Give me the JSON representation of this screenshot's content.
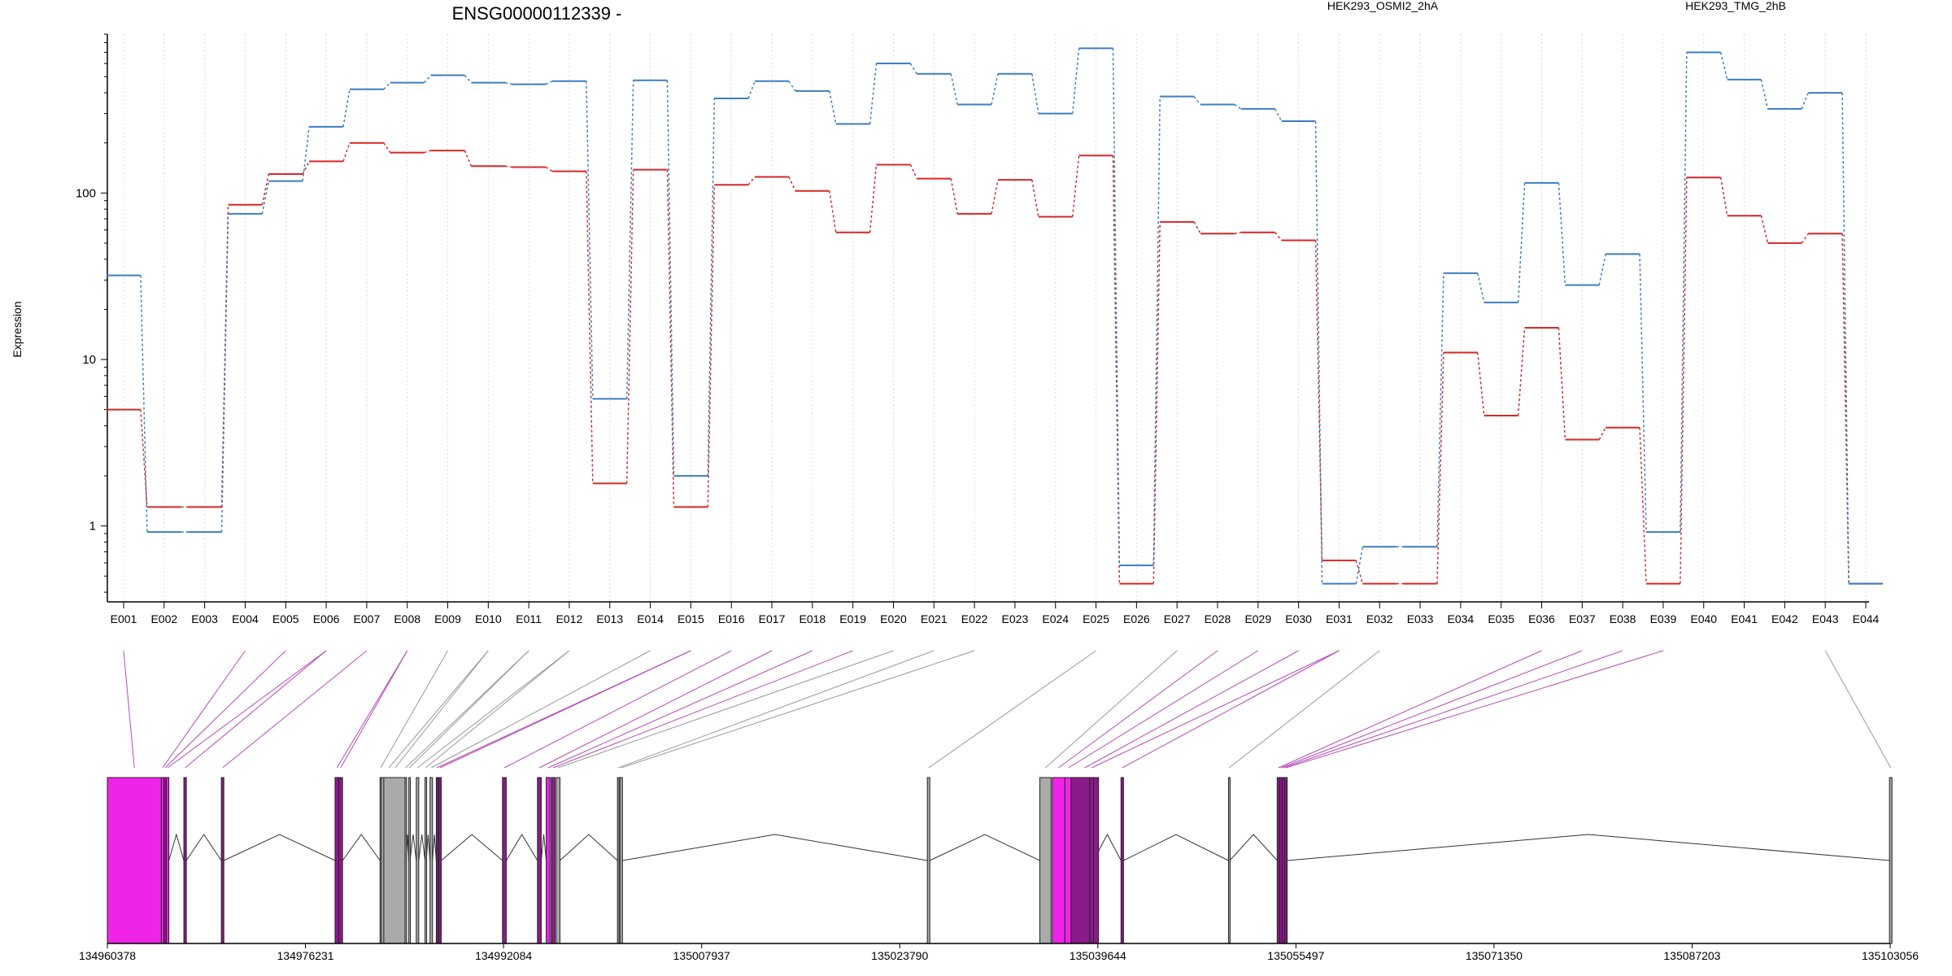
{
  "chart_data": {
    "type": "line",
    "title": "ENSG00000112339 -",
    "xlabel": "",
    "ylabel": "Expression",
    "yscale": "log",
    "ylim": [
      0.35,
      900
    ],
    "yticks": [
      1,
      10,
      100
    ],
    "ytick_labels": [
      "1",
      "10",
      "100"
    ],
    "grid": "vertical dotted guides at each exon",
    "legend_position": "top",
    "exons": [
      "E001",
      "E002",
      "E003",
      "E004",
      "E005",
      "E006",
      "E007",
      "E008",
      "E009",
      "E010",
      "E011",
      "E012",
      "E013",
      "E014",
      "E015",
      "E016",
      "E017",
      "E018",
      "E019",
      "E020",
      "E021",
      "E022",
      "E023",
      "E024",
      "E025",
      "E026",
      "E027",
      "E028",
      "E029",
      "E030",
      "E031",
      "E032",
      "E033",
      "E034",
      "E035",
      "E036",
      "E037",
      "E038",
      "E039",
      "E040",
      "E041",
      "E042",
      "E043",
      "E044"
    ],
    "series": [
      {
        "name": "HEK293_OSMI2_2hA",
        "color": "#d62728",
        "values": [
          5,
          1.3,
          1.3,
          85,
          130,
          155,
          200,
          175,
          180,
          145,
          143,
          135,
          1.8,
          138,
          1.3,
          112,
          125,
          103,
          58,
          148,
          122,
          75,
          120,
          72,
          168,
          0.45,
          67,
          57,
          58,
          52,
          0.62,
          0.45,
          0.45,
          11,
          4.6,
          15.5,
          3.3,
          3.9,
          0.45,
          124,
          73,
          50,
          57,
          0.45
        ]
      },
      {
        "name": "HEK293_TMG_2hB",
        "color": "#3b7dc4",
        "values": [
          32,
          0.92,
          0.92,
          75,
          118,
          250,
          420,
          460,
          510,
          460,
          450,
          470,
          5.8,
          475,
          2.0,
          370,
          470,
          410,
          260,
          600,
          520,
          340,
          520,
          300,
          740,
          0.58,
          380,
          340,
          320,
          270,
          0.45,
          0.75,
          0.75,
          33,
          22,
          115,
          28,
          43,
          0.92,
          700,
          480,
          320,
          400,
          0.45
        ]
      }
    ],
    "gene_model": {
      "coordinate_ticks": [
        "134960378",
        "134976231",
        "134992084",
        "135007937",
        "135023790",
        "135039644",
        "135055497",
        "135071350",
        "135087203",
        "135103056"
      ],
      "genome_range": [
        134960378,
        135103056
      ],
      "colors": {
        "expressed": "#f024e8",
        "differential": "#8b1a8b",
        "other": "#aaaaaa"
      },
      "exon_starts": [
        134960378,
        134964700,
        134964900,
        134965100,
        134966500,
        134969500,
        134978600,
        134978900,
        134982200,
        134982300,
        134982500,
        134984200,
        134984500,
        134985100,
        134985800,
        134986200,
        134986700,
        134986900,
        134992000,
        134994800,
        134995500,
        134995900,
        134996300,
        135001200,
        135001400,
        135026000,
        135035000,
        135036000,
        135037000,
        135037500,
        135039000,
        135041500,
        135050100,
        135054000,
        135054200,
        135054400,
        135054600,
        135103000
      ],
      "exon_ends": [
        134964700,
        134964900,
        134965100,
        134965300,
        134966700,
        134969700,
        134978900,
        134979200,
        134982300,
        134983500,
        134984300,
        134984300,
        134984600,
        134985300,
        134985900,
        134986400,
        134986800,
        134987100,
        134992300,
        134995100,
        134995800,
        134996200,
        134996600,
        135001300,
        135001600,
        135026200,
        135035900,
        135037000,
        135037600,
        135039700,
        135039300,
        135041700,
        135050200,
        135054200,
        135054400,
        135054600,
        135054800,
        135103200
      ],
      "exon_kind": [
        "expressed",
        "expressed",
        "differential",
        "expressed",
        "differential",
        "differential",
        "differential",
        "differential",
        "other",
        "other",
        "other",
        "other",
        "other",
        "other",
        "other",
        "other",
        "differential",
        "differential",
        "differential",
        "differential",
        "expressed",
        "differential",
        "other",
        "other",
        "other",
        "other",
        "other",
        "expressed",
        "expressed",
        "differential",
        "differential",
        "differential",
        "other",
        "differential",
        "differential",
        "differential",
        "differential",
        "other"
      ],
      "exon_map": [
        1,
        4,
        5,
        6,
        6,
        7,
        8,
        8,
        9,
        10,
        10,
        11,
        11,
        12,
        12,
        14,
        15,
        15,
        16,
        17,
        18,
        19,
        20,
        21,
        22,
        25,
        27,
        28,
        29,
        30,
        31,
        31,
        32,
        36,
        37,
        38,
        39,
        43
      ]
    }
  }
}
